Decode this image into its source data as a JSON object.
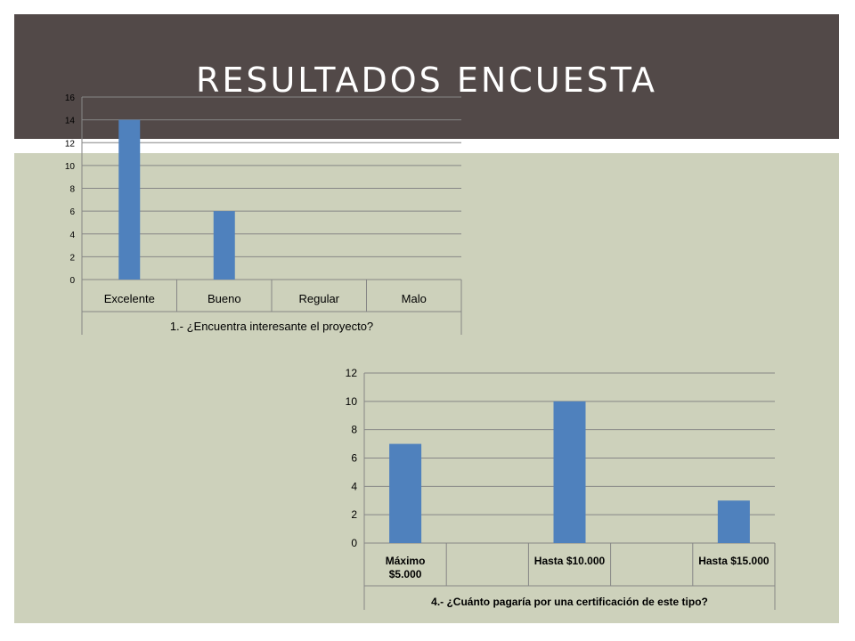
{
  "slide": {
    "title": "RESULTADOS ENCUESTA"
  },
  "colors": {
    "header_bg": "#524948",
    "content_bg": "#cdd1bb",
    "bar_fill": "#4f81bd"
  },
  "chart_data": [
    {
      "type": "bar",
      "title": "",
      "categories": [
        "Excelente",
        "Bueno",
        "Regular",
        "Malo"
      ],
      "values": [
        14,
        6,
        0,
        0
      ],
      "xlabel": "1.-  ¿Encuentra interesante el proyecto?",
      "ylabel": "",
      "ylim": [
        0,
        16
      ],
      "yticks": [
        0,
        2,
        4,
        6,
        8,
        10,
        12,
        14,
        16
      ],
      "grid": true,
      "legend": "none"
    },
    {
      "type": "bar",
      "title": "",
      "categories": [
        "Máximo\n$5.000",
        "",
        "Hasta $10.000",
        "",
        "Hasta $15.000"
      ],
      "values": [
        7,
        null,
        10,
        null,
        3
      ],
      "xlabel": "4.-  ¿Cuánto pagaría por una certificación de este tipo?",
      "ylabel": "",
      "ylim": [
        0,
        12
      ],
      "yticks": [
        0,
        2,
        4,
        6,
        8,
        10,
        12
      ],
      "grid": true,
      "legend": "none"
    }
  ]
}
